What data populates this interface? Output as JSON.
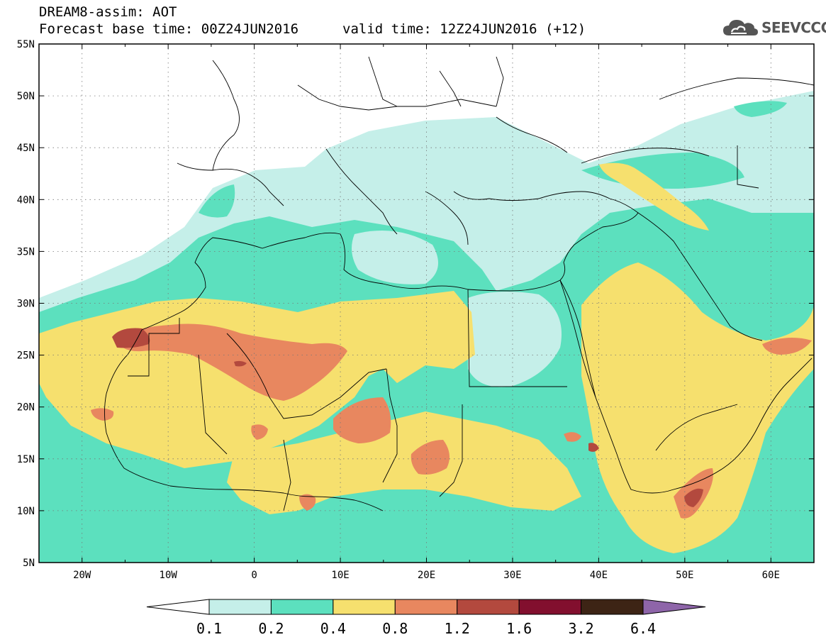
{
  "header": {
    "line1": "DREAM8-assim: AOT",
    "line2": "Forecast base time: 00Z24JUN2016",
    "valid": "valid time: 12Z24JUN2016 (+12)"
  },
  "logo": {
    "text": "SEEVCCC",
    "icon": "cloud-icon"
  },
  "map": {
    "lat_labels": [
      "5N",
      "10N",
      "15N",
      "20N",
      "25N",
      "30N",
      "35N",
      "40N",
      "45N",
      "50N",
      "55N"
    ],
    "lon_labels": [
      "20W",
      "10W",
      "0",
      "10E",
      "20E",
      "30E",
      "40E",
      "50E",
      "60E"
    ],
    "lat_values": [
      5,
      10,
      15,
      20,
      25,
      30,
      35,
      40,
      45,
      50,
      55
    ],
    "lon_values": [
      -20,
      -10,
      0,
      10,
      20,
      30,
      40,
      50,
      60
    ],
    "extent": {
      "lon_min": -25,
      "lon_max": 65,
      "lat_min": 5,
      "lat_max": 55
    }
  },
  "legend": {
    "labels": [
      "0.1",
      "0.2",
      "0.4",
      "0.8",
      "1.2",
      "1.6",
      "3.2",
      "6.4"
    ],
    "colors": [
      "#ffffff",
      "#c5efe9",
      "#5ce0be",
      "#f6e06e",
      "#e8875f",
      "#b3493e",
      "#820f2e",
      "#3d2415",
      "#8e65a9"
    ]
  }
}
